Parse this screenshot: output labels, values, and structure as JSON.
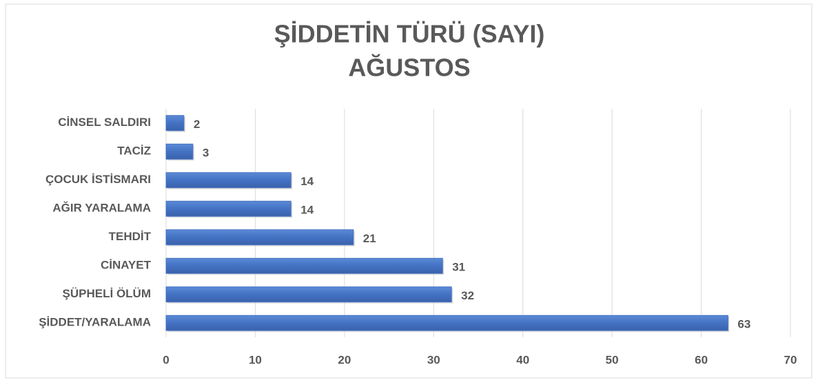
{
  "chart_data": {
    "type": "bar",
    "orientation": "horizontal",
    "title": [
      "ŞİDDETİN TÜRÜ (SAYI)",
      "AĞUSTOS"
    ],
    "categories": [
      "CİNSEL SALDIRI",
      "TACİZ",
      "ÇOCUK İSTİSMARI",
      "AĞIR YARALAMA",
      "TEHDİT",
      "CİNAYET",
      "ŞÜPHELİ ÖLÜM",
      "ŞİDDET/YARALAMA"
    ],
    "values": [
      2,
      3,
      14,
      14,
      21,
      31,
      32,
      63
    ],
    "color": "#4472c4",
    "xlim": [
      0,
      70
    ],
    "xticks": [
      0,
      10,
      20,
      30,
      40,
      50,
      60,
      70
    ],
    "grid": true
  }
}
